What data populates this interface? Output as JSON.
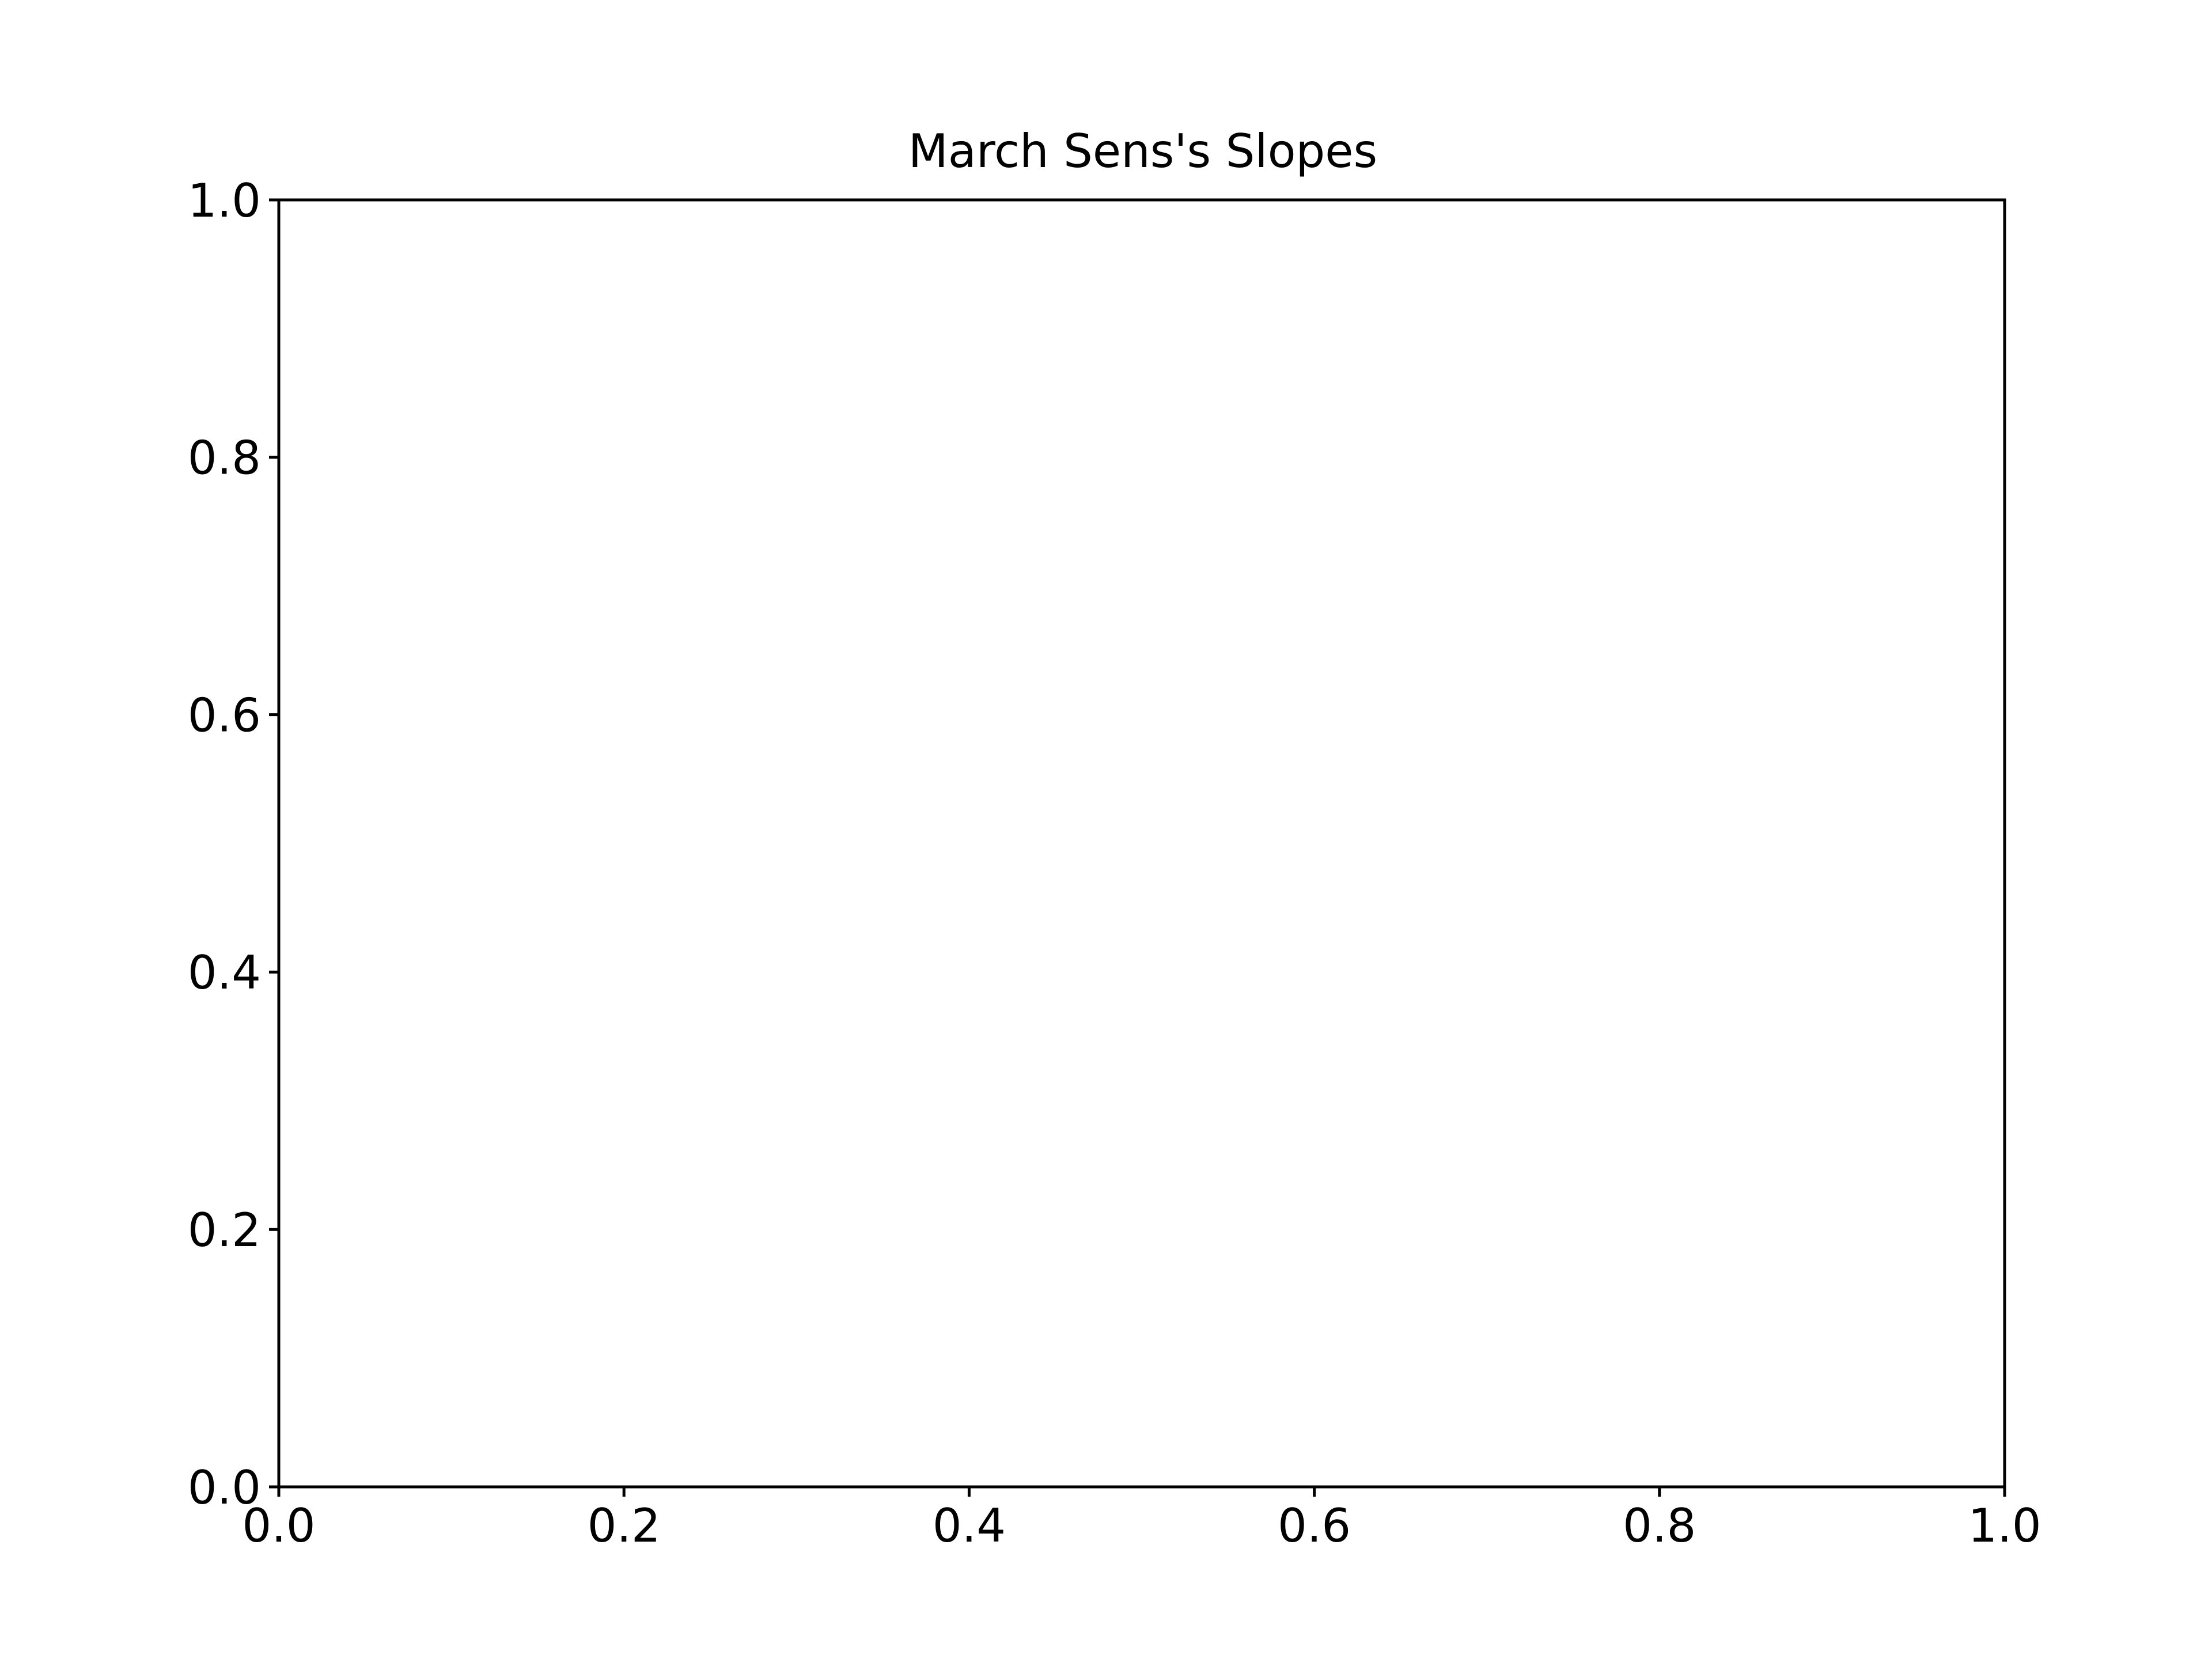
{
  "chart_data": {
    "type": "line",
    "title": "March Sens's Slopes",
    "xlabel": "",
    "ylabel": "",
    "xlim": [
      0.0,
      1.0
    ],
    "ylim": [
      0.0,
      1.0
    ],
    "xticks": [
      "0.0",
      "0.2",
      "0.4",
      "0.6",
      "0.8",
      "1.0"
    ],
    "yticks": [
      "0.0",
      "0.2",
      "0.4",
      "0.6",
      "0.8",
      "1.0"
    ],
    "series": [],
    "grid": false,
    "legend": "none",
    "colors": {
      "axes": "#000000",
      "background": "#ffffff"
    }
  }
}
